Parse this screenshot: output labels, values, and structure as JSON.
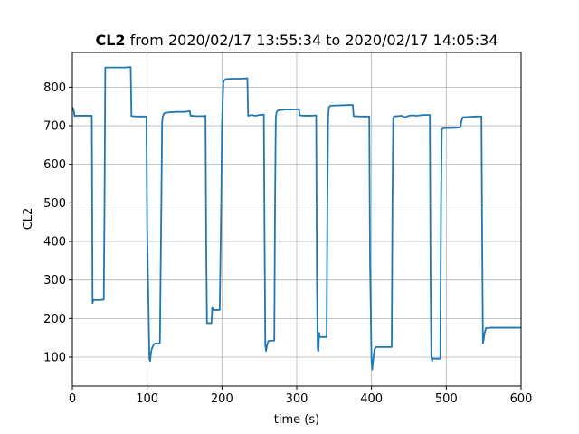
{
  "chart_data": {
    "type": "line",
    "title": {
      "bold": "CL2",
      "rest": " from 2020/02/17 13:55:34 to 2020/02/17 14:05:34"
    },
    "xlabel": "time (s)",
    "ylabel": "CL2",
    "xlim": [
      0,
      600
    ],
    "ylim": [
      25,
      890
    ],
    "xticks": [
      0,
      100,
      200,
      300,
      400,
      500,
      600
    ],
    "yticks": [
      100,
      200,
      300,
      400,
      500,
      600,
      700,
      800
    ],
    "grid": true,
    "legend": "none",
    "series": [
      {
        "color": "#1f77b4",
        "points": [
          [
            0,
            748
          ],
          [
            1,
            745
          ],
          [
            2,
            738
          ],
          [
            3,
            725
          ],
          [
            4,
            726
          ],
          [
            10,
            726
          ],
          [
            20,
            726
          ],
          [
            26,
            726
          ],
          [
            27,
            240
          ],
          [
            28,
            248
          ],
          [
            35,
            248
          ],
          [
            42,
            249
          ],
          [
            43,
            500
          ],
          [
            44,
            851
          ],
          [
            55,
            851
          ],
          [
            70,
            851
          ],
          [
            78,
            852
          ],
          [
            79,
            725
          ],
          [
            85,
            724
          ],
          [
            95,
            724
          ],
          [
            99,
            724
          ],
          [
            100,
            430
          ],
          [
            103,
            95
          ],
          [
            104,
            90
          ],
          [
            105,
            110
          ],
          [
            106,
            120
          ],
          [
            108,
            130
          ],
          [
            110,
            135
          ],
          [
            117,
            136
          ],
          [
            119,
            500
          ],
          [
            120,
            710
          ],
          [
            121,
            725
          ],
          [
            123,
            733
          ],
          [
            130,
            735
          ],
          [
            140,
            736
          ],
          [
            150,
            736
          ],
          [
            157,
            738
          ],
          [
            158,
            726
          ],
          [
            165,
            725
          ],
          [
            175,
            725
          ],
          [
            178,
            726
          ],
          [
            179,
            380
          ],
          [
            180,
            188
          ],
          [
            186,
            188
          ],
          [
            187,
            230
          ],
          [
            188,
            222
          ],
          [
            196,
            222
          ],
          [
            197,
            222
          ],
          [
            199,
            500
          ],
          [
            200,
            700
          ],
          [
            201,
            760
          ],
          [
            202,
            815
          ],
          [
            205,
            821
          ],
          [
            215,
            822
          ],
          [
            225,
            822
          ],
          [
            234,
            823
          ],
          [
            235,
            726
          ],
          [
            240,
            728
          ],
          [
            245,
            726
          ],
          [
            250,
            728
          ],
          [
            256,
            729
          ],
          [
            257,
            400
          ],
          [
            258,
            130
          ],
          [
            259,
            116
          ],
          [
            260,
            128
          ],
          [
            262,
            142
          ],
          [
            270,
            143
          ],
          [
            271,
            500
          ],
          [
            272,
            720
          ],
          [
            273,
            735
          ],
          [
            275,
            740
          ],
          [
            285,
            742
          ],
          [
            295,
            742
          ],
          [
            303,
            743
          ],
          [
            304,
            727
          ],
          [
            310,
            726
          ],
          [
            320,
            726
          ],
          [
            326,
            727
          ],
          [
            327,
            300
          ],
          [
            328,
            120
          ],
          [
            329,
            116
          ],
          [
            330,
            163
          ],
          [
            331,
            152
          ],
          [
            340,
            152
          ],
          [
            341,
            500
          ],
          [
            342,
            720
          ],
          [
            343,
            748
          ],
          [
            345,
            752
          ],
          [
            360,
            753
          ],
          [
            375,
            754
          ],
          [
            376,
            725
          ],
          [
            385,
            724
          ],
          [
            397,
            724
          ],
          [
            398,
            350
          ],
          [
            400,
            90
          ],
          [
            401,
            68
          ],
          [
            402,
            90
          ],
          [
            404,
            120
          ],
          [
            406,
            126
          ],
          [
            415,
            126
          ],
          [
            427,
            126
          ],
          [
            428,
            500
          ],
          [
            429,
            718
          ],
          [
            430,
            724
          ],
          [
            440,
            726
          ],
          [
            445,
            722
          ],
          [
            450,
            726
          ],
          [
            455,
            727
          ],
          [
            460,
            726
          ],
          [
            470,
            728
          ],
          [
            478,
            728
          ],
          [
            479,
            300
          ],
          [
            480,
            100
          ],
          [
            481,
            90
          ],
          [
            482,
            97
          ],
          [
            484,
            96
          ],
          [
            492,
            96
          ],
          [
            493,
            500
          ],
          [
            494,
            690
          ],
          [
            496,
            694
          ],
          [
            505,
            694
          ],
          [
            515,
            695
          ],
          [
            519,
            696
          ],
          [
            520,
            710
          ],
          [
            522,
            722
          ],
          [
            530,
            723
          ],
          [
            540,
            724
          ],
          [
            547,
            724
          ],
          [
            548,
            400
          ],
          [
            549,
            136
          ],
          [
            550,
            145
          ],
          [
            551,
            160
          ],
          [
            553,
            175
          ],
          [
            560,
            176
          ],
          [
            600,
            176
          ]
        ]
      }
    ]
  }
}
